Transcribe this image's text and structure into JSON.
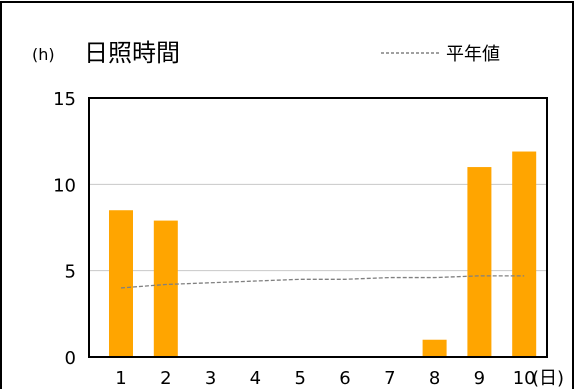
{
  "chart_data": {
    "type": "bar",
    "title": "日照時間",
    "ylabel": "(h)",
    "xlabel": "(日)",
    "categories": [
      "1",
      "2",
      "3",
      "4",
      "5",
      "6",
      "7",
      "8",
      "9",
      "10"
    ],
    "series": [
      {
        "values": [
          8.5,
          7.9,
          0,
          0,
          0,
          0,
          0,
          1.0,
          11.0,
          11.9
        ],
        "color": "#FFA500"
      }
    ],
    "normal_line": {
      "name": "平年値",
      "values": [
        4.0,
        4.2,
        4.3,
        4.4,
        4.5,
        4.5,
        4.6,
        4.6,
        4.7,
        4.7
      ],
      "color": "#808080",
      "style": "dashed"
    },
    "yticks": [
      "0",
      "5",
      "10",
      "15"
    ],
    "ylim": [
      0,
      15
    ],
    "grid": true,
    "legend": "top-right"
  }
}
